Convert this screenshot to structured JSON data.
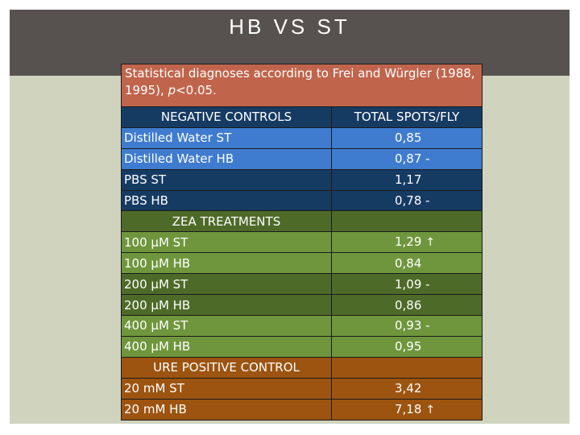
{
  "slide": {
    "title": "HB VS ST"
  },
  "table": {
    "caption_main": "Statistical diagnoses according to Frei and Würgler (1988, 1995), ",
    "caption_p": "p",
    "caption_tail": "<0.05.",
    "col_header_left": "NEGATIVE CONTROLS",
    "col_header_right": "TOTAL SPOTS/FLY",
    "negative_rows": [
      {
        "label": "Distilled Water ST",
        "value": "0,85"
      },
      {
        "label": "Distilled Water HB",
        "value": "0,87 -"
      },
      {
        "label": "PBS ST",
        "value": "1,17"
      },
      {
        "label": "PBS HB",
        "value": "0,78 -"
      }
    ],
    "zea_header": "ZEA TREATMENTS",
    "zea_rows": [
      {
        "label": "100 µM ST",
        "value": "1,29",
        "arrow": "up-arrow-icon"
      },
      {
        "label": "100 µM  HB",
        "value": "0,84"
      },
      {
        "label": "200 µM  ST",
        "value": "1,09 -"
      },
      {
        "label": "200 µM  HB",
        "value": "0,86"
      },
      {
        "label": "400 µM  ST",
        "value": "0,93 -"
      },
      {
        "label": "400 µM  HB",
        "value": "0,95"
      }
    ],
    "ure_header": "URE POSITIVE CONTROL",
    "ure_rows": [
      {
        "label": "20 mM ST",
        "value": "3,42"
      },
      {
        "label": "20 mM HB",
        "value": "7,18",
        "arrow": "up-arrow-icon"
      }
    ]
  },
  "colors": {
    "header_band": "#575250",
    "background": "#d0d4bf",
    "caption": "#c0654c",
    "blue_dark": "#163b63",
    "blue_light": "#3f7cd0",
    "green_light": "#6f963c",
    "green_dark": "#4e6a28",
    "brown": "#9c5410"
  }
}
